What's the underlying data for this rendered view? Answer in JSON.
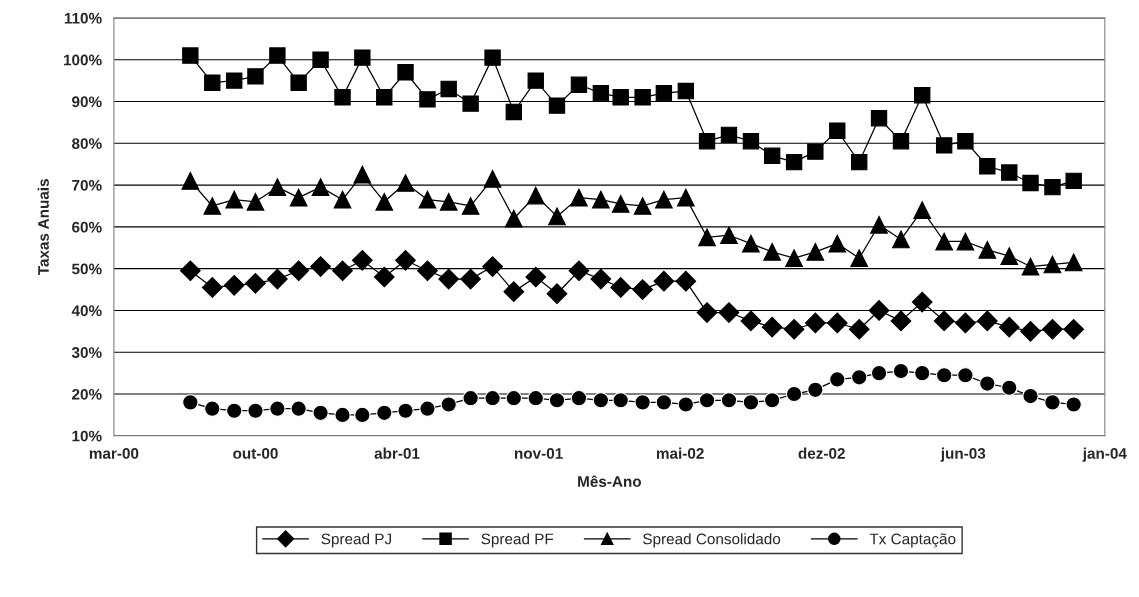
{
  "chart_data": {
    "type": "line",
    "xlabel": "Mês-Ano",
    "ylabel": "Taxas Anuais",
    "x": [
      "2000-07",
      "2000-08",
      "2000-09",
      "2000-10",
      "2000-11",
      "2000-12",
      "2001-01",
      "2001-02",
      "2001-03",
      "2001-04",
      "2001-05",
      "2001-06",
      "2001-07",
      "2001-08",
      "2001-09",
      "2001-10",
      "2001-11",
      "2001-12",
      "2002-01",
      "2002-02",
      "2002-03",
      "2002-04",
      "2002-05",
      "2002-06",
      "2002-07",
      "2002-08",
      "2002-09",
      "2002-10",
      "2002-11",
      "2002-12",
      "2003-01",
      "2003-02",
      "2003-03",
      "2003-04",
      "2003-05",
      "2003-06",
      "2003-07",
      "2003-08",
      "2003-09",
      "2003-10",
      "2003-11",
      "2003-12"
    ],
    "series": [
      {
        "name": "Spread PJ",
        "color": "#000000",
        "marker": "diamond",
        "values": [
          49.5,
          45.5,
          46,
          46.5,
          47.5,
          49.5,
          50.5,
          49.5,
          52,
          48,
          52,
          49.5,
          47.5,
          47.5,
          50.5,
          44.5,
          48,
          44,
          49.5,
          47.5,
          45.5,
          45,
          47,
          47,
          39.5,
          39.5,
          37.5,
          36,
          35.5,
          37,
          37,
          35.5,
          40,
          37.5,
          42,
          37.5,
          37,
          37.5,
          36,
          35,
          35.5,
          35.5
        ]
      },
      {
        "name": "Spread PF",
        "color": "#000000",
        "marker": "square",
        "values": [
          101,
          94.5,
          95,
          96,
          101,
          94.5,
          100,
          91,
          100.5,
          91,
          97,
          90.5,
          93,
          89.5,
          100.5,
          87.5,
          95,
          89,
          94,
          92,
          91,
          91,
          92,
          92.5,
          80.5,
          82,
          80.5,
          77,
          75.5,
          78,
          83,
          75.5,
          86,
          80.5,
          91.5,
          79.5,
          80.5,
          74.5,
          73,
          70.5,
          69.5,
          71
        ]
      },
      {
        "name": "Spread Consolidado",
        "color": "#000000",
        "marker": "triangle",
        "values": [
          71,
          65,
          66.5,
          66,
          69.5,
          67,
          69.5,
          66.5,
          72.5,
          66,
          70.5,
          66.5,
          66,
          65,
          71.5,
          62,
          67.5,
          62.5,
          67,
          66.5,
          65.5,
          65,
          66.5,
          67,
          57.5,
          58,
          56,
          54,
          52.5,
          54,
          56,
          52.5,
          60.5,
          57,
          64,
          56.5,
          56.5,
          54.5,
          53,
          50.5,
          51,
          51.5
        ]
      },
      {
        "name": "Tx Captação",
        "color": "#000000",
        "marker": "circle",
        "values": [
          18,
          16.5,
          16,
          16,
          16.5,
          16.5,
          15.5,
          15,
          15,
          15.5,
          16,
          16.5,
          17.5,
          19,
          19,
          19,
          19,
          18.5,
          19,
          18.5,
          18.5,
          18,
          18,
          17.5,
          18.5,
          18.5,
          18,
          18.5,
          20,
          21,
          23.5,
          24,
          25,
          25.5,
          25,
          24.5,
          24.5,
          22.5,
          21.5,
          19.5,
          18,
          17.5
        ]
      }
    ],
    "xlim": [
      "2000-03-15",
      "2004-01-14"
    ],
    "xticks": [
      {
        "value": "2000-03-15",
        "label": "mar-00"
      },
      {
        "value": "2000-10-01",
        "label": "out-00"
      },
      {
        "value": "2001-04-19",
        "label": "abr-01"
      },
      {
        "value": "2001-11-05",
        "label": "nov-01"
      },
      {
        "value": "2002-05-24",
        "label": "mai-02"
      },
      {
        "value": "2002-12-10",
        "label": "dez-02"
      },
      {
        "value": "2003-06-28",
        "label": "jun-03"
      },
      {
        "value": "2004-01-14",
        "label": "jan-04"
      }
    ],
    "ylim": [
      10,
      110
    ],
    "yticks": [
      {
        "value": 10,
        "label": "10%"
      },
      {
        "value": 20,
        "label": "20%"
      },
      {
        "value": 30,
        "label": "30%"
      },
      {
        "value": 40,
        "label": "40%"
      },
      {
        "value": 50,
        "label": "50%"
      },
      {
        "value": 60,
        "label": "60%"
      },
      {
        "value": 70,
        "label": "70%"
      },
      {
        "value": 80,
        "label": "80%"
      },
      {
        "value": 90,
        "label": "90%"
      },
      {
        "value": 100,
        "label": "100%"
      },
      {
        "value": 110,
        "label": "110%"
      }
    ],
    "grid": "y",
    "legend": "bottom",
    "line_style": "solid"
  }
}
